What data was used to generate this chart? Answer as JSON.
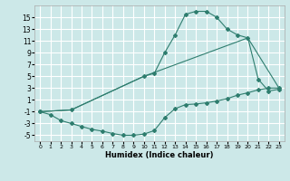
{
  "xlabel": "Humidex (Indice chaleur)",
  "background_color": "#cce8e8",
  "grid_color": "#ffffff",
  "line_color": "#2e7d6e",
  "xlim": [
    -0.5,
    23.5
  ],
  "ylim": [
    -6,
    17
  ],
  "xticks": [
    0,
    1,
    2,
    3,
    4,
    5,
    6,
    7,
    8,
    9,
    10,
    11,
    12,
    13,
    14,
    15,
    16,
    17,
    18,
    19,
    20,
    21,
    22,
    23
  ],
  "yticks": [
    -5,
    -3,
    -1,
    1,
    3,
    5,
    7,
    9,
    11,
    13,
    15
  ],
  "line1_x": [
    0,
    1,
    2,
    3,
    4,
    5,
    6,
    7,
    8,
    9,
    10,
    11,
    12,
    13,
    14,
    15,
    16,
    17,
    18,
    19,
    20,
    21,
    22,
    23
  ],
  "line1_y": [
    -1,
    -1.5,
    -2.5,
    -3,
    -3.5,
    -4,
    -4.3,
    -4.7,
    -5,
    -5,
    -4.8,
    -4.2,
    -2,
    -0.5,
    0.2,
    0.3,
    0.5,
    0.8,
    1.2,
    1.8,
    2.2,
    2.7,
    3,
    3
  ],
  "line2_x": [
    0,
    3,
    10,
    11,
    12,
    13,
    14,
    15,
    16,
    17,
    18,
    19,
    20,
    21,
    22,
    23
  ],
  "line2_y": [
    -1,
    -0.7,
    5,
    5.5,
    9,
    12,
    15.5,
    16,
    16,
    15,
    13,
    12,
    11.5,
    4.5,
    2.5,
    2.8
  ],
  "line3_x": [
    0,
    3,
    10,
    20,
    23
  ],
  "line3_y": [
    -1,
    -0.7,
    5,
    11.5,
    3
  ]
}
